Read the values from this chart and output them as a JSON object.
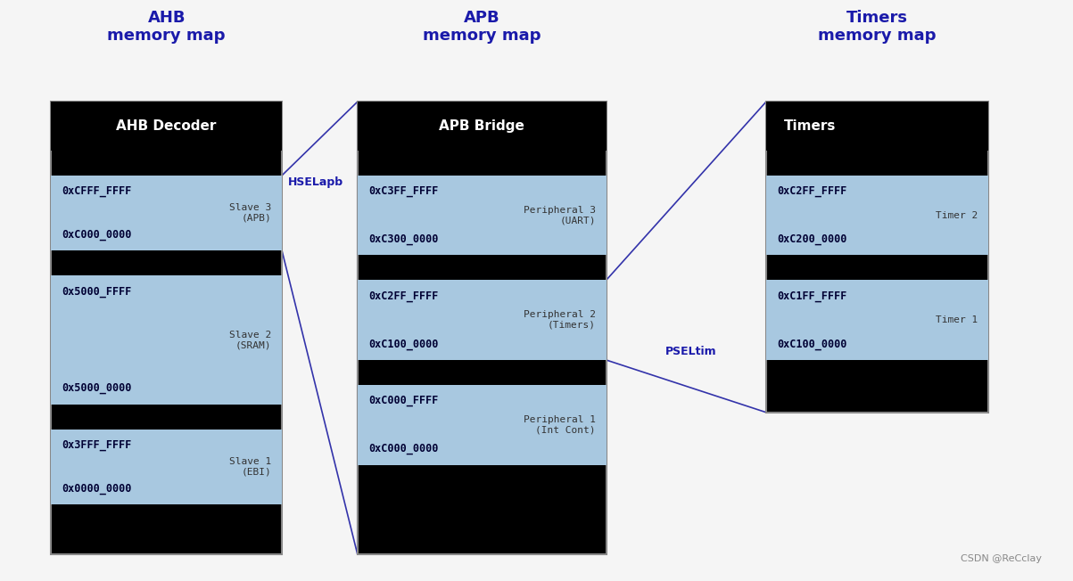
{
  "bg_color": "#f5f5f5",
  "diagram_bg": "#000000",
  "cell_color": "#a8c8e0",
  "title_text_color": "#1a1aaa",
  "header_text_color": "#ffffff",
  "watermark": "CSDN @ReCclay",
  "col1_title": "AHB\nmemory map",
  "col2_title": "APB\nmemory map",
  "col3_title": "Timers\nmemory map",
  "col1_header": "AHB Decoder",
  "col2_header": "APB Bridge",
  "col3_header": "Timers",
  "arrow1_label": "HSELapb",
  "arrow2_label": "PSELtim"
}
